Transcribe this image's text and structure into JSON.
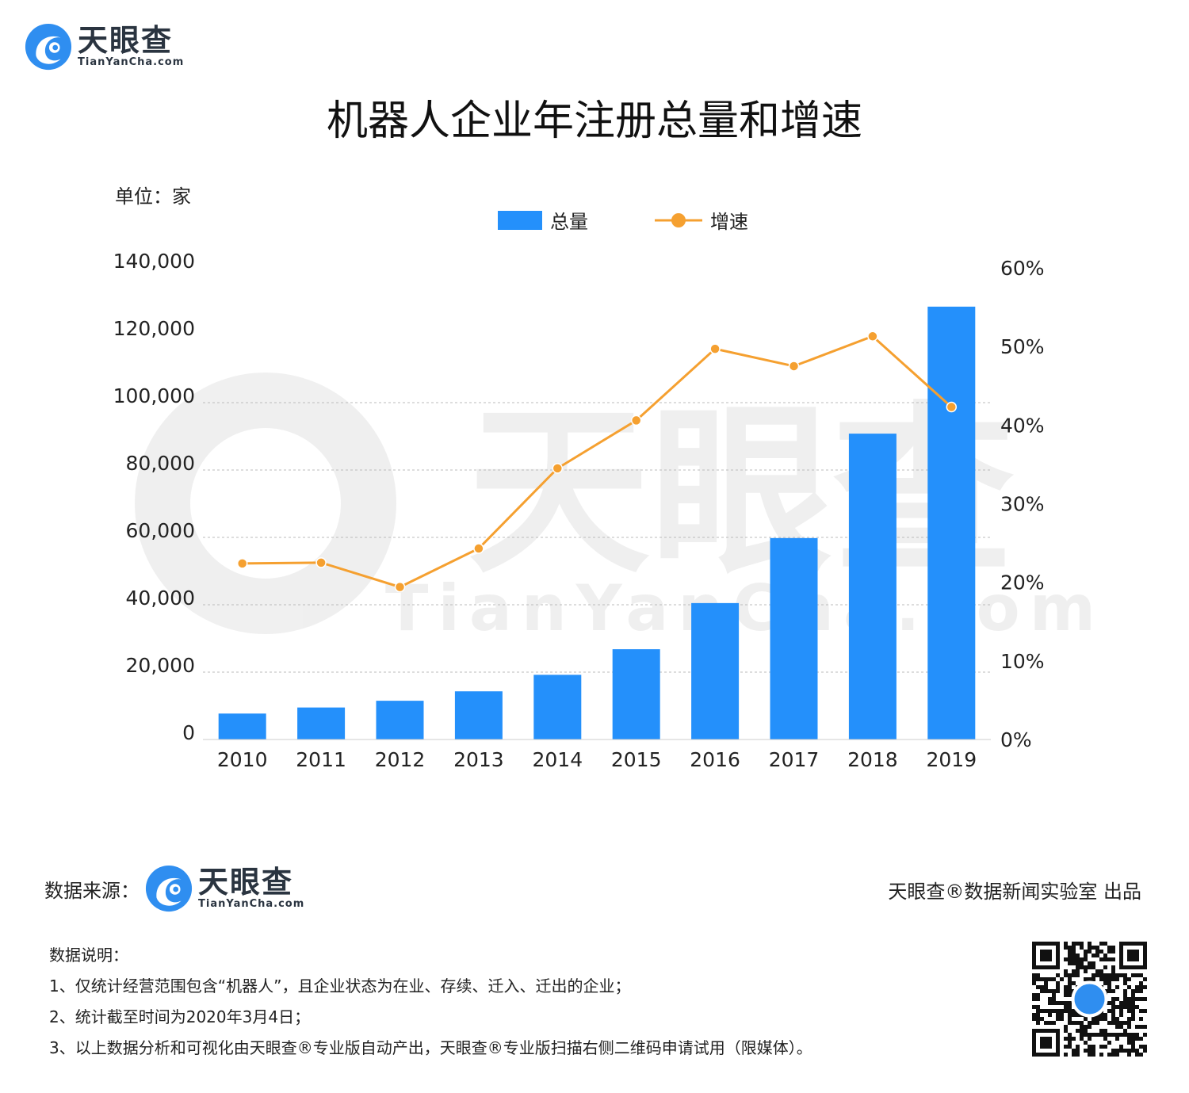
{
  "brand": {
    "name": "天眼查",
    "domain": "TianYanCha.com",
    "watermark_name": "天眼查",
    "watermark_domain": "TianYanCha.com"
  },
  "title": "机器人企业年注册总量和增速",
  "unit_label": "单位：家",
  "colors": {
    "bar": "#2490fb",
    "line": "#f5a030",
    "grid": "#bbbbbb",
    "logo_blue": "#2f8ef0"
  },
  "chart_data": {
    "type": "bar",
    "categories": [
      "2010",
      "2011",
      "2012",
      "2013",
      "2014",
      "2015",
      "2016",
      "2017",
      "2018",
      "2019"
    ],
    "series": [
      {
        "name": "总量",
        "type": "bar",
        "axis": "left",
        "values": [
          7700,
          9500,
          11500,
          14300,
          19200,
          26800,
          40500,
          59800,
          90800,
          128500
        ]
      },
      {
        "name": "增速",
        "type": "line",
        "axis": "right",
        "values": [
          22.4,
          22.5,
          19.4,
          24.3,
          34.5,
          40.6,
          49.7,
          47.5,
          51.3,
          42.3
        ]
      }
    ],
    "y_left": {
      "ylim": [
        0,
        140000
      ],
      "ticks": [
        "0",
        "20,000",
        "40,000",
        "60,000",
        "80,000",
        "100,000",
        "120,000",
        "140,000"
      ]
    },
    "y_right": {
      "ylim": [
        0,
        60
      ],
      "ticks": [
        "0%",
        "10%",
        "20%",
        "30%",
        "40%",
        "50%",
        "60%"
      ]
    },
    "grid": true,
    "legend": "top-center"
  },
  "footer": {
    "source_label": "数据来源：",
    "credit": "天眼查®数据新闻实验室 出品",
    "notes_title": "数据说明：",
    "notes": [
      "1、仅统计经营范围包含“机器人”，且企业状态为在业、存续、迁入、迁出的企业；",
      "2、统计截至时间为2020年3月4日；",
      "3、以上数据分析和可视化由天眼查®专业版自动产出，天眼查®专业版扫描右侧二维码申请试用（限媒体）。"
    ]
  }
}
